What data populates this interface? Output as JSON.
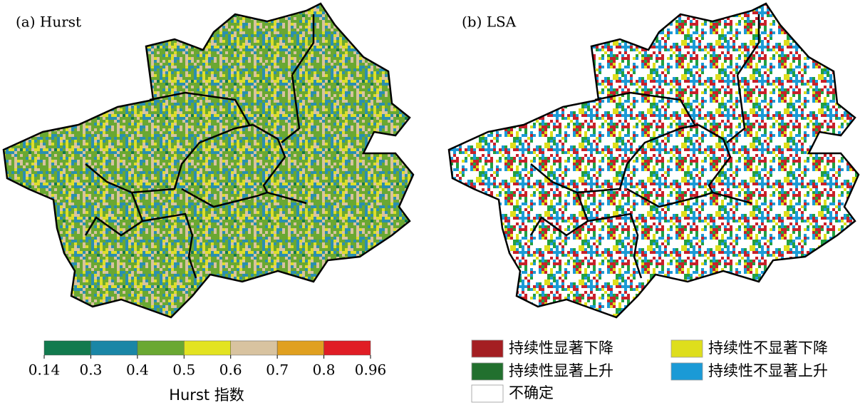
{
  "panels": [
    {
      "title": "(a) Hurst"
    },
    {
      "title": "(b) LSA"
    }
  ],
  "colorbar": {
    "ticks": [
      0.14,
      0.3,
      0.4,
      0.5,
      0.6,
      0.7,
      0.8,
      0.96
    ],
    "colors": [
      "#127a4e",
      "#1a86a6",
      "#6aa832",
      "#e3e321",
      "#d8c3a0",
      "#e0a020",
      "#e01d25"
    ],
    "label": "Hurst 指数"
  },
  "legend": [
    {
      "label": "持续性显著下降",
      "color": "#a41e22"
    },
    {
      "label": "持续性不显著下降",
      "color": "#dede1c"
    },
    {
      "label": "持续性显著上升",
      "color": "#22702e"
    },
    {
      "label": "持续性不显著上升",
      "color": "#1b9ad6"
    },
    {
      "label": "不确定",
      "color": "#ffffff"
    }
  ]
}
